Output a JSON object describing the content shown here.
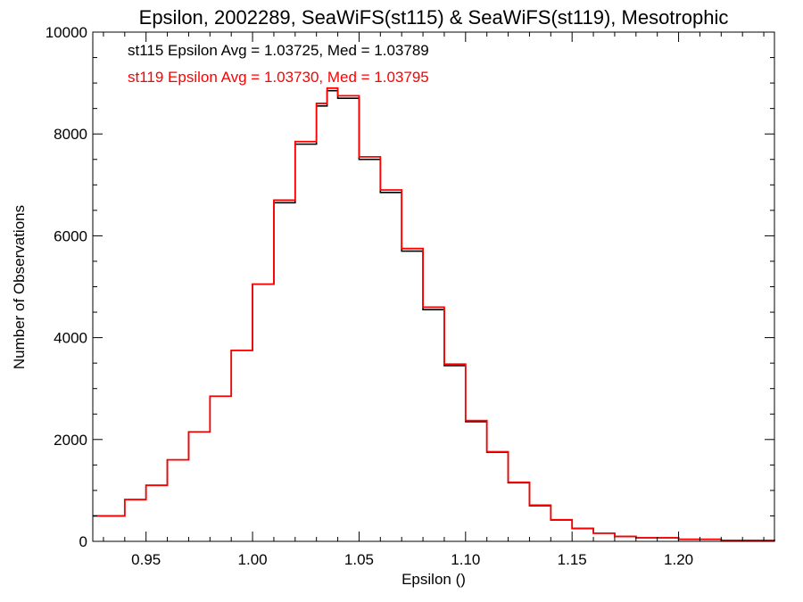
{
  "chart_data": {
    "type": "line",
    "step": true,
    "title": "Epsilon, 2002289, SeaWiFS(st115) & SeaWiFS(st119), Mesotrophic",
    "xlabel": "Epsilon ()",
    "ylabel": "Number of Observations",
    "xlim": [
      0.925,
      1.245
    ],
    "ylim": [
      0,
      10000
    ],
    "x_ticks": [
      0.95,
      1.0,
      1.05,
      1.1,
      1.15,
      1.2
    ],
    "x_tick_labels": [
      "0.95",
      "1.00",
      "1.05",
      "1.10",
      "1.15",
      "1.20"
    ],
    "y_ticks": [
      0,
      2000,
      4000,
      6000,
      8000,
      10000
    ],
    "y_tick_labels": [
      "0",
      "2000",
      "4000",
      "6000",
      "8000",
      "10000"
    ],
    "grid": false,
    "legend_position": "top-left",
    "annotations": [
      {
        "text": "st115 Epsilon Avg = 1.03725, Med = 1.03789",
        "color": "#000000"
      },
      {
        "text": "st119 Epsilon Avg = 1.03730, Med = 1.03795",
        "color": "#ff0000"
      }
    ],
    "x": [
      0.925,
      0.94,
      0.95,
      0.96,
      0.97,
      0.98,
      0.99,
      1.0,
      1.01,
      1.02,
      1.03,
      1.035,
      1.04,
      1.05,
      1.06,
      1.07,
      1.08,
      1.09,
      1.1,
      1.11,
      1.12,
      1.13,
      1.14,
      1.15,
      1.16,
      1.17,
      1.18,
      1.2,
      1.22,
      1.245
    ],
    "series": [
      {
        "color": "#000000",
        "values": [
          500,
          820,
          1100,
          1600,
          2150,
          2850,
          3750,
          5050,
          6650,
          7800,
          8550,
          8850,
          8700,
          7500,
          6850,
          5700,
          4550,
          3450,
          2350,
          1750,
          1150,
          700,
          420,
          250,
          160,
          95,
          70,
          40,
          20,
          10
        ]
      },
      {
        "color": "#ff0000",
        "values": [
          500,
          820,
          1100,
          1600,
          2150,
          2850,
          3750,
          5050,
          6700,
          7850,
          8600,
          8900,
          8750,
          7550,
          6900,
          5750,
          4600,
          3480,
          2370,
          1760,
          1160,
          710,
          425,
          255,
          160,
          95,
          70,
          40,
          20,
          10
        ]
      }
    ]
  }
}
